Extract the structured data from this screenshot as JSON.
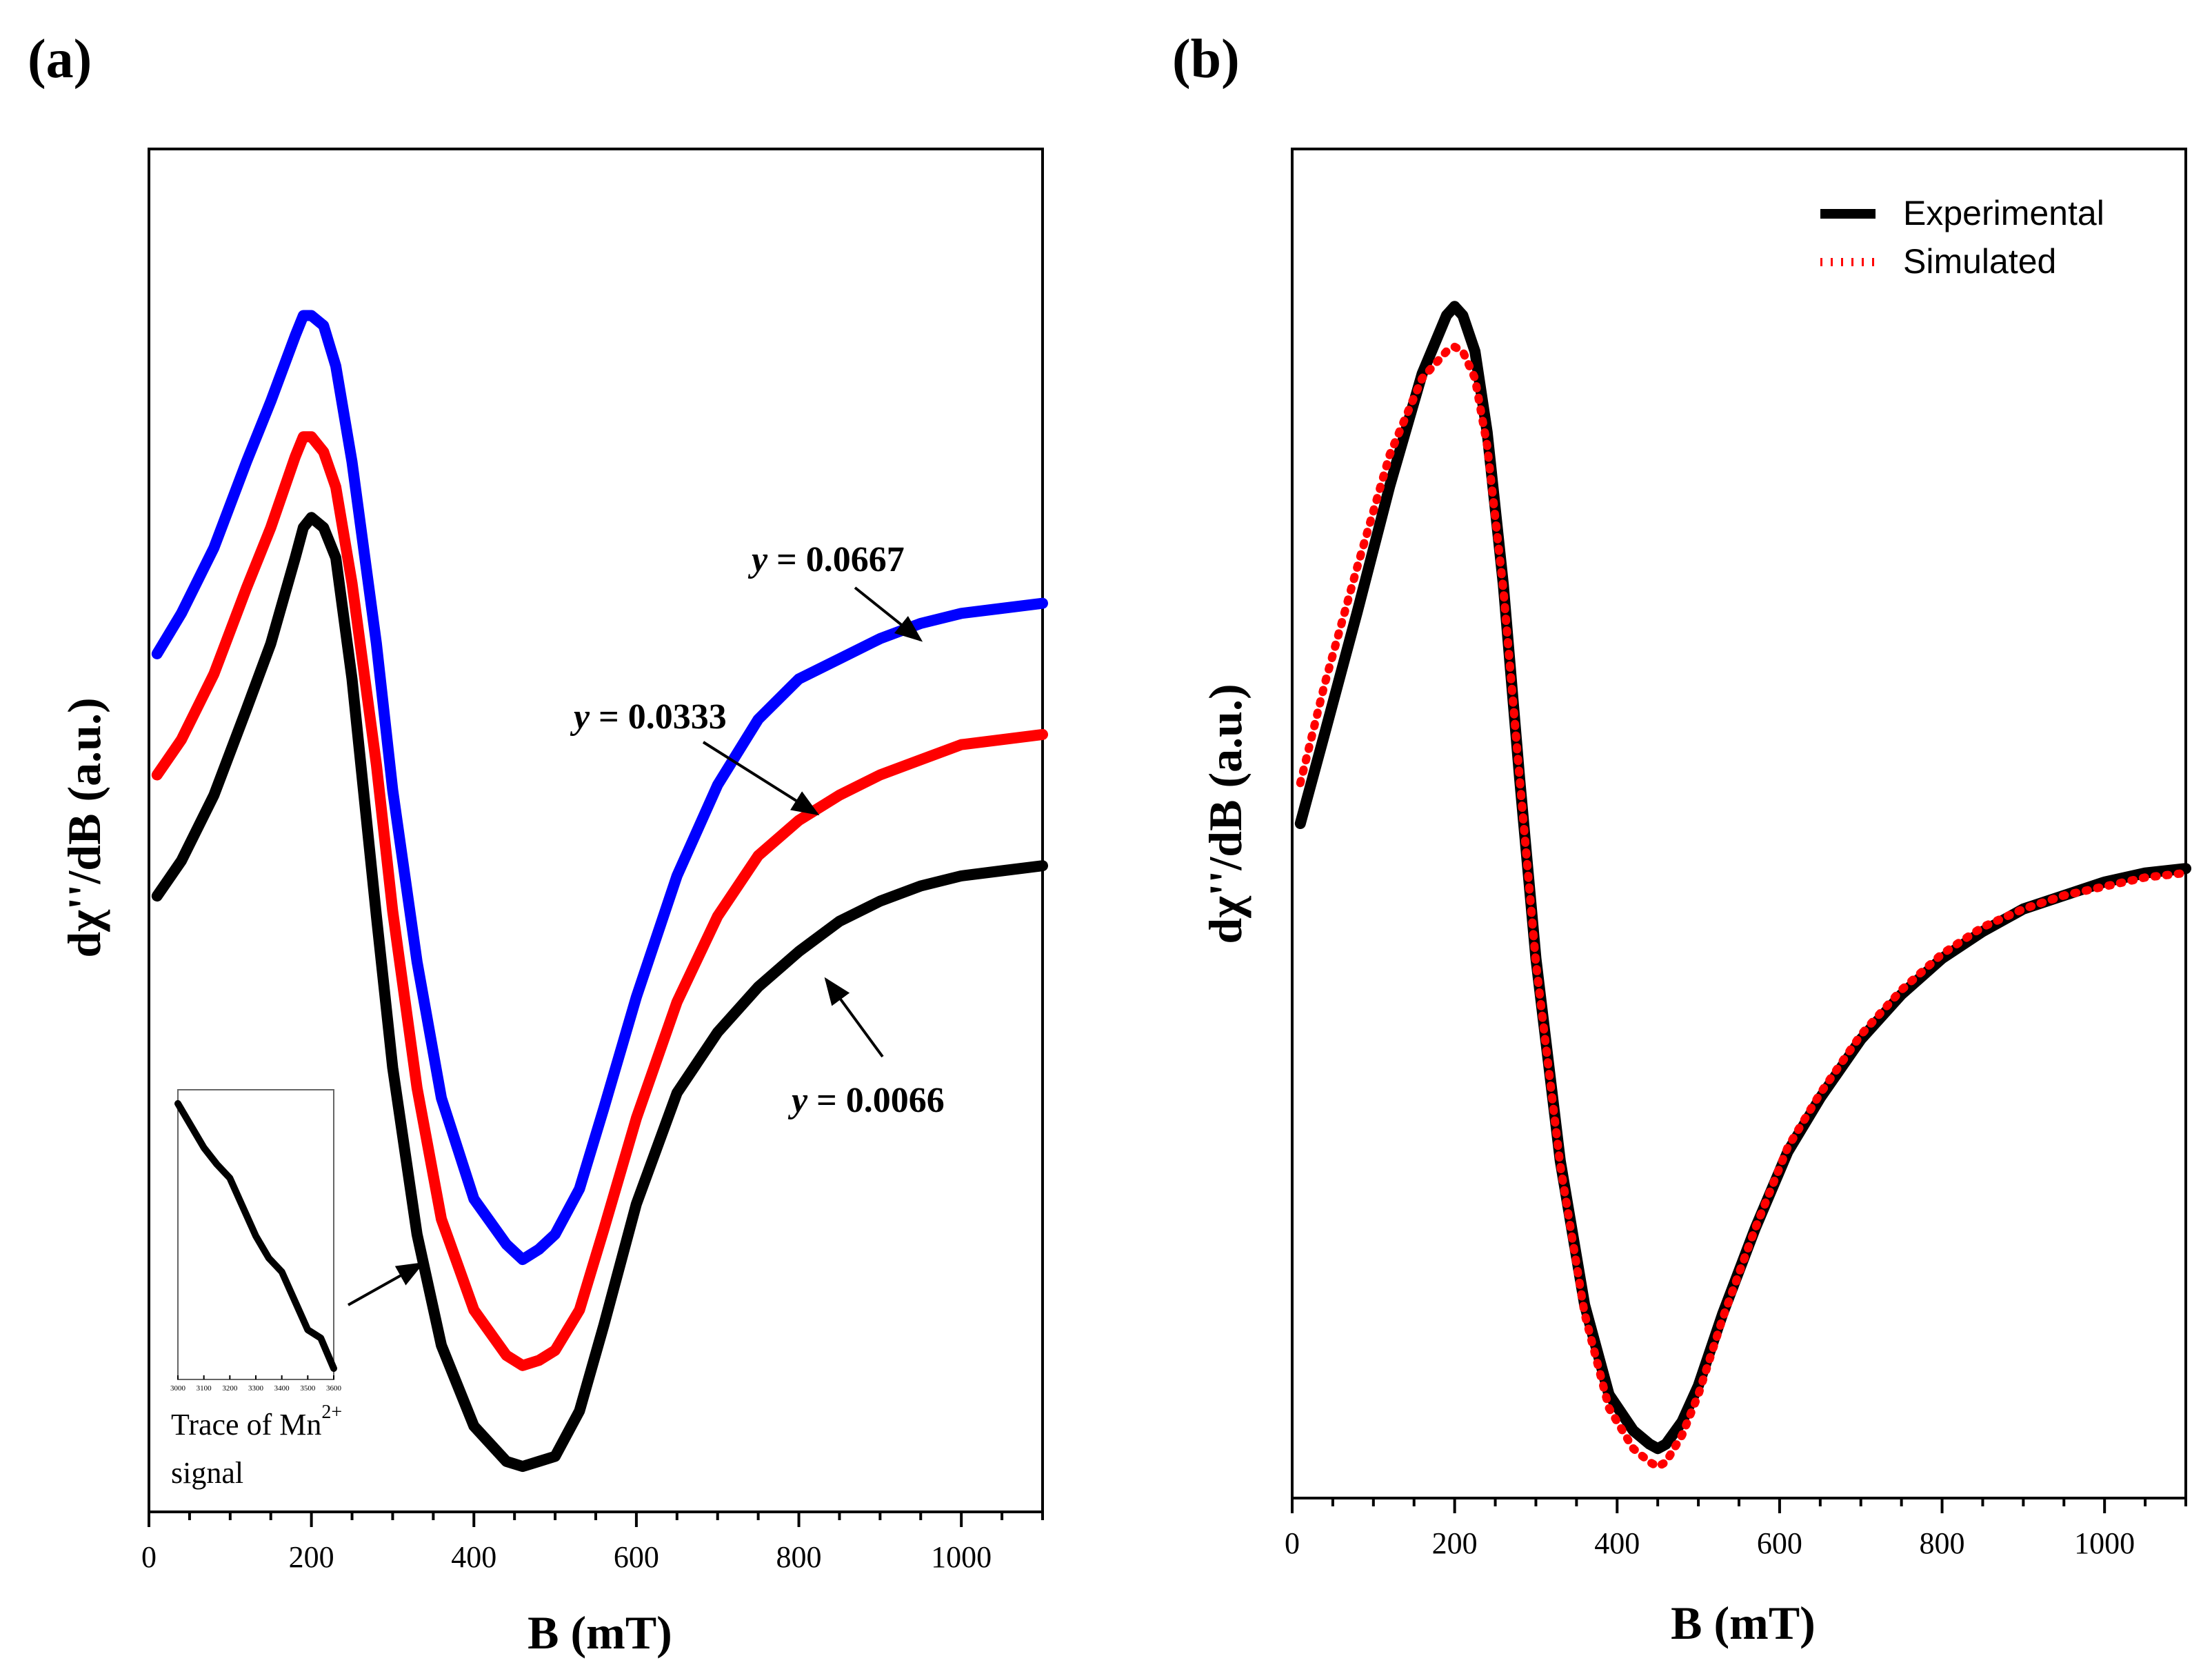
{
  "chart_data": [
    {
      "type": "line",
      "panel_label": "(a)",
      "xlabel": "B  (mT)",
      "ylabel": "dχ''/dB  (a.u.)",
      "xlim": [
        0,
        1100
      ],
      "ylim": [
        -1.25,
        1.45
      ],
      "xticks": [
        0,
        200,
        400,
        600,
        800,
        1000
      ],
      "yticks_visible": false,
      "colors": {
        "y0066": "#000000",
        "y0333": "#ff0000",
        "y0667": "#0000ff"
      },
      "series": [
        {
          "name": "y = 0.0066",
          "color": "#000000",
          "x": [
            10,
            40,
            80,
            120,
            150,
            180,
            190,
            200,
            215,
            230,
            250,
            280,
            300,
            330,
            360,
            400,
            440,
            460,
            480,
            500,
            530,
            560,
            600,
            650,
            700,
            750,
            800,
            850,
            900,
            950,
            1000,
            1050,
            1100
          ],
          "y": [
            -0.03,
            0.04,
            0.17,
            0.34,
            0.47,
            0.64,
            0.7,
            0.72,
            0.7,
            0.64,
            0.4,
            -0.07,
            -0.37,
            -0.7,
            -0.92,
            -1.08,
            -1.15,
            -1.16,
            -1.15,
            -1.14,
            -1.05,
            -0.88,
            -0.64,
            -0.42,
            -0.3,
            -0.21,
            -0.14,
            -0.08,
            -0.04,
            -0.01,
            0.01,
            0.02,
            0.03
          ]
        },
        {
          "name": "y = 0.0333",
          "color": "#ff0000",
          "x": [
            10,
            40,
            80,
            120,
            150,
            180,
            190,
            200,
            215,
            230,
            250,
            280,
            300,
            330,
            360,
            400,
            440,
            460,
            480,
            500,
            530,
            560,
            600,
            650,
            700,
            750,
            800,
            850,
            900,
            950,
            1000,
            1050,
            1100
          ],
          "y": [
            0.21,
            0.28,
            0.41,
            0.58,
            0.7,
            0.84,
            0.88,
            0.88,
            0.85,
            0.78,
            0.59,
            0.23,
            -0.06,
            -0.41,
            -0.67,
            -0.85,
            -0.94,
            -0.96,
            -0.95,
            -0.93,
            -0.85,
            -0.69,
            -0.47,
            -0.24,
            -0.07,
            0.05,
            0.12,
            0.17,
            0.21,
            0.24,
            0.27,
            0.28,
            0.29
          ]
        },
        {
          "name": "y = 0.0667",
          "color": "#0000ff",
          "x": [
            10,
            40,
            80,
            120,
            150,
            180,
            190,
            200,
            215,
            230,
            250,
            280,
            300,
            330,
            360,
            400,
            440,
            460,
            480,
            500,
            530,
            560,
            600,
            650,
            700,
            750,
            800,
            850,
            900,
            950,
            1000,
            1050,
            1100
          ],
          "y": [
            0.45,
            0.53,
            0.66,
            0.83,
            0.95,
            1.08,
            1.12,
            1.12,
            1.1,
            1.02,
            0.83,
            0.47,
            0.18,
            -0.16,
            -0.43,
            -0.63,
            -0.72,
            -0.75,
            -0.73,
            -0.7,
            -0.61,
            -0.45,
            -0.23,
            0.01,
            0.19,
            0.32,
            0.4,
            0.44,
            0.48,
            0.51,
            0.53,
            0.54,
            0.55
          ]
        }
      ],
      "annotations": [
        {
          "label_prefix": "y",
          "label_value": " = 0.0667",
          "target": "y = 0.0667"
        },
        {
          "label_prefix": "y",
          "label_value": " = 0.0333",
          "target": "y = 0.0333"
        },
        {
          "label_prefix": "y",
          "label_value": " = 0.0066",
          "target": "y = 0.0066"
        }
      ],
      "inset": {
        "xticks": [
          "3000",
          "3100",
          "3200",
          "3300",
          "3400",
          "3500",
          "3600"
        ],
        "x": [
          3000,
          3100,
          3150,
          3200,
          3300,
          3350,
          3400,
          3500,
          3550,
          3600
        ],
        "y": [
          10,
          8.4,
          7.8,
          7.3,
          5.2,
          4.4,
          3.9,
          1.8,
          1.5,
          0.4
        ],
        "caption_line1": "Trace of Mn",
        "caption_superscript": "2+",
        "caption_line2": "signal"
      }
    },
    {
      "type": "line",
      "panel_label": "(b)",
      "xlabel": "B  (mT)",
      "ylabel": "dχ''/dB  (a.u.)",
      "xlim": [
        0,
        1100
      ],
      "ylim": [
        -1.15,
        1.85
      ],
      "xticks": [
        0,
        200,
        400,
        600,
        800,
        1000
      ],
      "yticks_visible": false,
      "legend": {
        "position": "top-right",
        "entries": [
          "Experimental",
          "Simulated"
        ]
      },
      "series": [
        {
          "name": "Experimental",
          "color": "#000000",
          "style": "solid",
          "x": [
            10,
            40,
            80,
            120,
            160,
            190,
            200,
            210,
            225,
            240,
            260,
            280,
            300,
            330,
            360,
            390,
            420,
            440,
            450,
            460,
            480,
            500,
            530,
            570,
            610,
            650,
            700,
            750,
            800,
            850,
            900,
            950,
            1000,
            1050,
            1100
          ],
          "y": [
            0.35,
            0.55,
            0.82,
            1.1,
            1.35,
            1.48,
            1.5,
            1.48,
            1.4,
            1.22,
            0.88,
            0.45,
            0.05,
            -0.4,
            -0.72,
            -0.92,
            -1.0,
            -1.03,
            -1.04,
            -1.03,
            -0.98,
            -0.9,
            -0.74,
            -0.55,
            -0.38,
            -0.26,
            -0.13,
            -0.03,
            0.05,
            0.11,
            0.16,
            0.19,
            0.22,
            0.24,
            0.25
          ]
        },
        {
          "name": "Simulated",
          "color": "#ff0000",
          "style": "dotted",
          "x": [
            10,
            40,
            80,
            120,
            160,
            190,
            200,
            210,
            225,
            240,
            260,
            280,
            300,
            330,
            360,
            390,
            420,
            440,
            450,
            460,
            480,
            500,
            530,
            570,
            610,
            650,
            700,
            750,
            800,
            850,
            900,
            950,
            1000,
            1050,
            1100
          ],
          "y": [
            0.44,
            0.66,
            0.92,
            1.17,
            1.34,
            1.4,
            1.41,
            1.4,
            1.34,
            1.19,
            0.87,
            0.45,
            0.04,
            -0.41,
            -0.74,
            -0.95,
            -1.04,
            -1.07,
            -1.08,
            -1.07,
            -1.01,
            -0.92,
            -0.75,
            -0.55,
            -0.37,
            -0.25,
            -0.12,
            -0.02,
            0.06,
            0.12,
            0.16,
            0.19,
            0.21,
            0.23,
            0.24
          ]
        }
      ]
    }
  ]
}
